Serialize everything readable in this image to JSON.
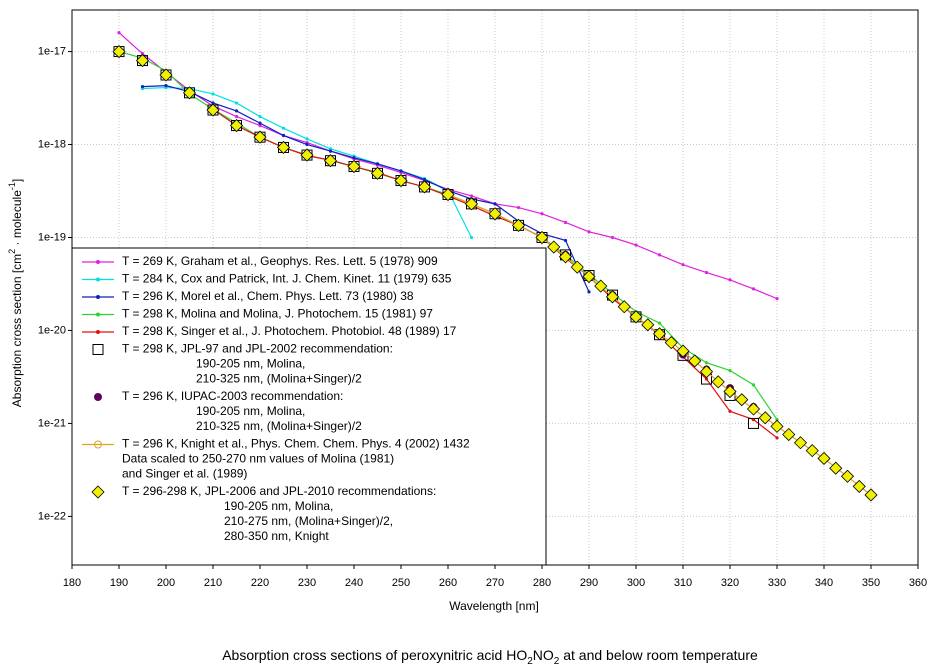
{
  "chart_data": {
    "type": "line",
    "title": [
      "Absorption cross sections of peroxynitric acid HO",
      "2",
      "NO",
      "2",
      " at and below room temperature"
    ],
    "x_label": "Wavelength [nm]",
    "y_label": [
      "Absorption cross section [cm",
      "2",
      " · molecule",
      "-1",
      "]"
    ],
    "xlim": [
      180,
      360
    ],
    "xticks": [
      180,
      190,
      200,
      210,
      220,
      230,
      240,
      250,
      260,
      270,
      280,
      290,
      300,
      310,
      320,
      330,
      340,
      350,
      360
    ],
    "ylim": [
      3e-23,
      2.8e-17
    ],
    "yticks": [
      1e-22,
      1e-21,
      1e-20,
      1e-19,
      1e-18,
      1e-17
    ],
    "log_y": true,
    "grid": true,
    "legend": "lower left",
    "series": [
      {
        "name": "T = 269 K, Graham et al., Geophys. Res. Lett. 5 (1978) 909",
        "color": "#e020e0",
        "line": true,
        "marker": "dot",
        "x": [
          190,
          195,
          200,
          205,
          210,
          215,
          220,
          225,
          230,
          235,
          240,
          245,
          250,
          255,
          260,
          265,
          270,
          275,
          280,
          285,
          290,
          295,
          300,
          305,
          310,
          315,
          320,
          325,
          330
        ],
        "values": [
          1.6e-17,
          9.5e-18,
          6e-18,
          3.8e-18,
          2.6e-18,
          2e-18,
          1.6e-18,
          1.25e-18,
          1.05e-18,
          8.5e-19,
          7e-19,
          6e-19,
          5e-19,
          4.1e-19,
          3.3e-19,
          2.8e-19,
          2.3e-19,
          2.1e-19,
          1.8e-19,
          1.45e-19,
          1.15e-19,
          1e-19,
          8.3e-20,
          6.5e-20,
          5.1e-20,
          4.2e-20,
          3.5e-20,
          2.8e-20,
          2.2e-20
        ]
      },
      {
        "name": "T = 284 K, Cox and Patrick, Int. J. Chem. Kinet. 11 (1979) 635",
        "color": "#00e0e0",
        "line": true,
        "marker": "dot",
        "x": [
          195,
          200,
          205,
          210,
          215,
          220,
          225,
          230,
          235,
          240,
          245,
          250,
          255,
          260,
          265
        ],
        "values": [
          4e-18,
          4.1e-18,
          4e-18,
          3.5e-18,
          2.8e-18,
          2e-18,
          1.5e-18,
          1.15e-18,
          9e-19,
          7.5e-19,
          6.2e-19,
          5.2e-19,
          4.3e-19,
          3.2e-19,
          1e-19
        ]
      },
      {
        "name": "T = 296 K, Morel et al., Chem. Phys. Lett. 73 (1980) 38",
        "color": "#1020c0",
        "line": true,
        "marker": "dot",
        "x": [
          195,
          200,
          205,
          210,
          215,
          220,
          225,
          230,
          235,
          240,
          245,
          250,
          255,
          260,
          265,
          270,
          275,
          280,
          285,
          290
        ],
        "values": [
          4.2e-18,
          4.3e-18,
          3.7e-18,
          2.8e-18,
          2.3e-18,
          1.7e-18,
          1.25e-18,
          1e-18,
          8.5e-19,
          7.2e-19,
          6.2e-19,
          5.2e-19,
          4.2e-19,
          3.2e-19,
          2.6e-19,
          2.3e-19,
          1.5e-19,
          1.1e-19,
          9.3e-20,
          2.6e-20
        ]
      },
      {
        "name": "T = 298 K, Molina and Molina, J. Photochem. 15 (1981) 97",
        "color": "#30d030",
        "line": true,
        "marker": "dot",
        "x": [
          190,
          195,
          200,
          205,
          210,
          215,
          220,
          225,
          230,
          235,
          240,
          245,
          250,
          255,
          260,
          265,
          270,
          275,
          280,
          285,
          290,
          295,
          300,
          305,
          310,
          315,
          320,
          325,
          330
        ],
        "values": [
          1e-17,
          8.5e-18,
          6.2e-18,
          3.5e-18,
          2.4e-18,
          1.7e-18,
          1.2e-18,
          9.3e-19,
          7.7e-19,
          6.7e-19,
          5.8e-19,
          4.9e-19,
          4.1e-19,
          3.5e-19,
          2.9e-19,
          2.3e-19,
          1.8e-19,
          1.35e-19,
          1e-19,
          6.5e-20,
          4e-20,
          2.5e-20,
          1.6e-20,
          1.2e-20,
          6.5e-21,
          4.5e-21,
          3.7e-21,
          2.6e-21,
          1.1e-21
        ]
      },
      {
        "name": "T = 298 K, Singer et al., J. Photochem. Photobiol. 48 (1989) 17",
        "color": "#e01010",
        "line": true,
        "marker": "dot",
        "x": [
          210,
          215,
          220,
          225,
          230,
          235,
          240,
          245,
          250,
          255,
          260,
          265,
          270,
          275,
          280,
          285,
          290,
          295,
          300,
          305,
          310,
          315,
          320,
          325,
          330
        ],
        "values": [
          2.4e-18,
          1.6e-18,
          1.2e-18,
          9.3e-19,
          7.6e-19,
          6.8e-19,
          5.8e-19,
          5e-19,
          4.1e-19,
          3.5e-19,
          2.8e-19,
          2.2e-19,
          1.7e-19,
          1.35e-19,
          1e-19,
          6e-20,
          3.8e-20,
          2.2e-20,
          1.4e-20,
          9e-21,
          5.2e-21,
          3e-21,
          1.35e-21,
          1.1e-21,
          7e-22
        ]
      },
      {
        "name": "T = 298 K, JPL-97 and JPL-2002 recommendation:",
        "notes": [
          "190-205 nm, Molina,",
          "210-325 nm, (Molina+Singer)/2"
        ],
        "color": "#000000",
        "line": false,
        "marker": "square",
        "x": [
          190,
          195,
          200,
          205,
          210,
          215,
          220,
          225,
          230,
          235,
          240,
          245,
          250,
          255,
          260,
          265,
          270,
          275,
          280,
          285,
          290,
          295,
          300,
          305,
          310,
          315,
          320,
          325
        ],
        "values": [
          1e-17,
          8e-18,
          5.6e-18,
          3.6e-18,
          2.35e-18,
          1.6e-18,
          1.2e-18,
          9.3e-19,
          7.7e-19,
          6.7e-19,
          5.8e-19,
          4.9e-19,
          4.1e-19,
          3.5e-19,
          2.9e-19,
          2.3e-19,
          1.8e-19,
          1.35e-19,
          1e-19,
          6.5e-20,
          3.9e-20,
          2.4e-20,
          1.4e-20,
          9e-21,
          5.4e-21,
          3e-21,
          2e-21,
          1e-21
        ]
      },
      {
        "name": "T = 296 K, IUPAC-2003 recommendation:",
        "notes": [
          "190-205 nm, Molina,",
          "210-325 nm, (Molina+Singer)/2"
        ],
        "color": "#600060",
        "line": false,
        "marker": "circle",
        "x": [
          190,
          195,
          200,
          205,
          210,
          215,
          220,
          225,
          230,
          235,
          240,
          245,
          250,
          255,
          260,
          265,
          270,
          275,
          280,
          285,
          290,
          295,
          300,
          305,
          310,
          315,
          320,
          325
        ],
        "values": [
          1e-17,
          8e-18,
          5.6e-18,
          3.6e-18,
          2.35e-18,
          1.6e-18,
          1.2e-18,
          9.3e-19,
          7.7e-19,
          6.7e-19,
          5.8e-19,
          4.9e-19,
          4.1e-19,
          3.5e-19,
          2.9e-19,
          2.3e-19,
          1.8e-19,
          1.35e-19,
          1e-19,
          6.5e-20,
          3.9e-20,
          2.4e-20,
          1.4e-20,
          9e-21,
          5.5e-21,
          3.8e-21,
          2.4e-21,
          1.5e-21
        ]
      },
      {
        "name": "T = 296 K, Knight et al., Phys. Chem. Chem. Phys. 4 (2002) 1432",
        "notes": [
          "Data scaled to 250-270 nm values of Molina (1981)",
          "and Singer et al. (1989)"
        ],
        "color": "#e0a020",
        "line": true,
        "marker": "circle",
        "x": [
          260,
          270,
          280,
          290,
          300,
          310,
          320,
          330,
          340,
          350
        ],
        "values": [
          2.9e-19,
          1.8e-19,
          1e-19,
          3.8e-20,
          1.4e-20,
          6e-21,
          2.2e-21,
          9.3e-22,
          4.2e-22,
          1.7e-22
        ]
      },
      {
        "name": "T = 296-298 K, JPL-2006 and JPL-2010 recommendations:",
        "notes": [
          "190-205 nm, Molina,",
          "210-275 nm, (Molina+Singer)/2,",
          "280-350 nm, Knight"
        ],
        "color": "#f0f000",
        "line": false,
        "marker": "diamond",
        "x": [
          190,
          195,
          200,
          205,
          210,
          215,
          220,
          225,
          230,
          235,
          240,
          245,
          250,
          255,
          260,
          265,
          270,
          275,
          280,
          282.5,
          285,
          287.5,
          290,
          292.5,
          295,
          297.5,
          300,
          302.5,
          305,
          307.5,
          310,
          312.5,
          315,
          317.5,
          320,
          322.5,
          325,
          327.5,
          330,
          332.5,
          335,
          337.5,
          340,
          342.5,
          345,
          347.5,
          350
        ],
        "values": [
          1e-17,
          8e-18,
          5.6e-18,
          3.6e-18,
          2.35e-18,
          1.6e-18,
          1.2e-18,
          9.3e-19,
          7.7e-19,
          6.7e-19,
          5.8e-19,
          4.9e-19,
          4.1e-19,
          3.5e-19,
          2.9e-19,
          2.3e-19,
          1.8e-19,
          1.35e-19,
          1e-19,
          7.9e-20,
          6.2e-20,
          4.8e-20,
          3.8e-20,
          3e-20,
          2.3e-20,
          1.8e-20,
          1.4e-20,
          1.15e-20,
          9.2e-21,
          7.4e-21,
          6e-21,
          4.7e-21,
          3.6e-21,
          2.8e-21,
          2.2e-21,
          1.8e-21,
          1.43e-21,
          1.15e-21,
          9.3e-22,
          7.6e-22,
          6.2e-22,
          5.1e-22,
          4.2e-22,
          3.3e-22,
          2.7e-22,
          2.1e-22,
          1.7e-22
        ]
      }
    ]
  }
}
